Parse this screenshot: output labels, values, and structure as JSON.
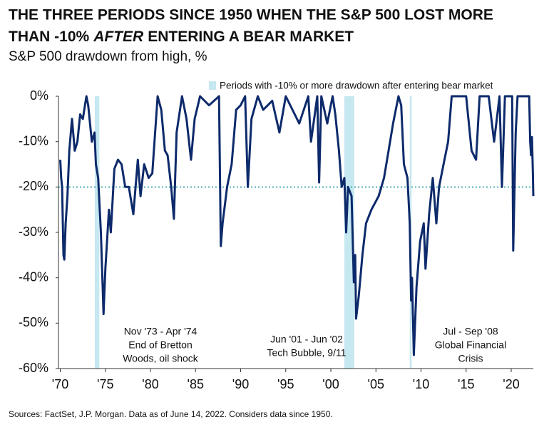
{
  "chart_data": {
    "type": "line",
    "title": [
      "THE THREE PERIODS SINCE 1950 WHEN THE S&P 500 LOST MORE",
      "THAN -10%",
      "AFTER",
      "ENTERING A BEAR MARKET"
    ],
    "subtitle": "S&P 500 drawdown from high, %",
    "footnote": "Sources: FactSet, J.P. Morgan. Data as of June 14, 2022. Considers data since 1950.",
    "shade_label": "Periods with -10% or more drawdown after entering bear market",
    "shade_color": "#c6e8f1",
    "shaded_periods": [
      {
        "x": [
          1973.83,
          1974.33
        ],
        "label": [
          "Nov '73 - Apr '74",
          "End of Bretton",
          "Woods, oil shock"
        ]
      },
      {
        "x": [
          2001.5,
          2002.6
        ],
        "label": [
          "Jun '01 - Jun '02",
          "Tech Bubble, 9/11"
        ]
      },
      {
        "x": [
          2008.75,
          2008.95
        ],
        "label": [
          "Jul - Sep '08",
          "Global Financial",
          "Crisis"
        ]
      }
    ],
    "reference_line": {
      "y": -20,
      "color": "#1f9a9e"
    },
    "xlim": [
      1969.8,
      2022.45
    ],
    "xticks": [
      {
        "value": 1970,
        "label": "'70"
      },
      {
        "value": 1975,
        "label": "'75"
      },
      {
        "value": 1980,
        "label": "'80"
      },
      {
        "value": 1985,
        "label": "'85"
      },
      {
        "value": 1990,
        "label": "'90"
      },
      {
        "value": 1995,
        "label": "'95"
      },
      {
        "value": 2000,
        "label": "'00"
      },
      {
        "value": 2005,
        "label": "'05"
      },
      {
        "value": 2010,
        "label": "'10"
      },
      {
        "value": 2015,
        "label": "'15"
      },
      {
        "value": 2020,
        "label": "'20"
      }
    ],
    "ylim": [
      -60,
      0
    ],
    "yticks": [
      {
        "value": 0,
        "label": "0%"
      },
      {
        "value": -10,
        "label": "-10%"
      },
      {
        "value": -20,
        "label": "-20%"
      },
      {
        "value": -30,
        "label": "-30%"
      },
      {
        "value": -40,
        "label": "-40%"
      },
      {
        "value": -50,
        "label": "-50%"
      },
      {
        "value": -60,
        "label": "-60%"
      }
    ],
    "x": [
      1970.0,
      1970.1,
      1970.2,
      1970.35,
      1970.45,
      1970.6,
      1970.8,
      1971.0,
      1971.3,
      1971.6,
      1971.9,
      1972.2,
      1972.5,
      1972.9,
      1973.1,
      1973.5,
      1973.8,
      1973.95,
      1974.2,
      1974.5,
      1974.7,
      1974.8,
      1975.0,
      1975.4,
      1975.6,
      1976.0,
      1976.4,
      1976.8,
      1977.2,
      1977.6,
      1978.1,
      1978.6,
      1978.9,
      1979.3,
      1979.8,
      1980.2,
      1980.8,
      1981.2,
      1981.6,
      1981.9,
      1982.3,
      1982.6,
      1982.9,
      1983.5,
      1984.0,
      1984.5,
      1984.9,
      1985.5,
      1986.5,
      1987.6,
      1987.8,
      1988.0,
      1988.5,
      1989.0,
      1989.5,
      1990.0,
      1990.5,
      1990.8,
      1991.2,
      1991.9,
      1992.5,
      1993.5,
      1994.3,
      1995.0,
      1996.5,
      1997.5,
      1997.8,
      1998.5,
      1998.7,
      1998.95,
      1999.6,
      2000.2,
      2000.5,
      2000.9,
      2001.2,
      2001.5,
      2001.7,
      2001.9,
      2002.3,
      2002.55,
      2002.7,
      2002.8,
      2003.1,
      2003.5,
      2003.9,
      2004.5,
      2005.3,
      2005.9,
      2006.4,
      2006.9,
      2007.5,
      2007.8,
      2008.1,
      2008.5,
      2008.75,
      2008.9,
      2009.0,
      2009.2,
      2009.5,
      2009.9,
      2010.3,
      2010.5,
      2010.9,
      2011.3,
      2011.7,
      2012.0,
      2012.5,
      2013.0,
      2013.4,
      2014.0,
      2015.0,
      2015.6,
      2016.1,
      2016.5,
      2017.5,
      2018.1,
      2018.7,
      2018.97,
      2019.3,
      2020.1,
      2020.22,
      2020.5,
      2020.7,
      2021.5,
      2021.99,
      2022.1,
      2022.2,
      2022.3,
      2022.4,
      2022.45
    ],
    "series": [
      {
        "color": "#0d2a6b",
        "values": [
          -14,
          -18,
          -20,
          -35,
          -36,
          -28,
          -22,
          -12,
          -5,
          -12,
          -10,
          -4,
          -5,
          0,
          -2,
          -10,
          -8,
          -15,
          -18,
          -30,
          -42,
          -48,
          -38,
          -25,
          -30,
          -16,
          -14,
          -15,
          -20,
          -20,
          -26,
          -14,
          -22,
          -15,
          -18,
          -17,
          0,
          -3,
          -12,
          -13,
          -20,
          -27,
          -8,
          0,
          -5,
          -14,
          -5,
          0,
          -2,
          0,
          -33,
          -28,
          -20,
          -15,
          -3,
          -2,
          0,
          -20,
          -5,
          0,
          -3,
          -1,
          -8,
          0,
          -6,
          0,
          -10,
          0,
          -19,
          0,
          -6,
          0,
          -4,
          -12,
          -20,
          -18,
          -30,
          -20,
          -22,
          -41,
          -35,
          -49,
          -44,
          -35,
          -28,
          -25,
          -22,
          -18,
          -12,
          -6,
          0,
          -2,
          -15,
          -18,
          -28,
          -45,
          -40,
          -57,
          -42,
          -32,
          -28,
          -38,
          -26,
          -18,
          -28,
          -20,
          -15,
          -10,
          0,
          0,
          0,
          -12,
          -14,
          0,
          0,
          -10,
          0,
          -20,
          0,
          0,
          -34,
          -8,
          0,
          0,
          0,
          -10,
          -13,
          -9,
          -17,
          -22
        ]
      }
    ]
  }
}
